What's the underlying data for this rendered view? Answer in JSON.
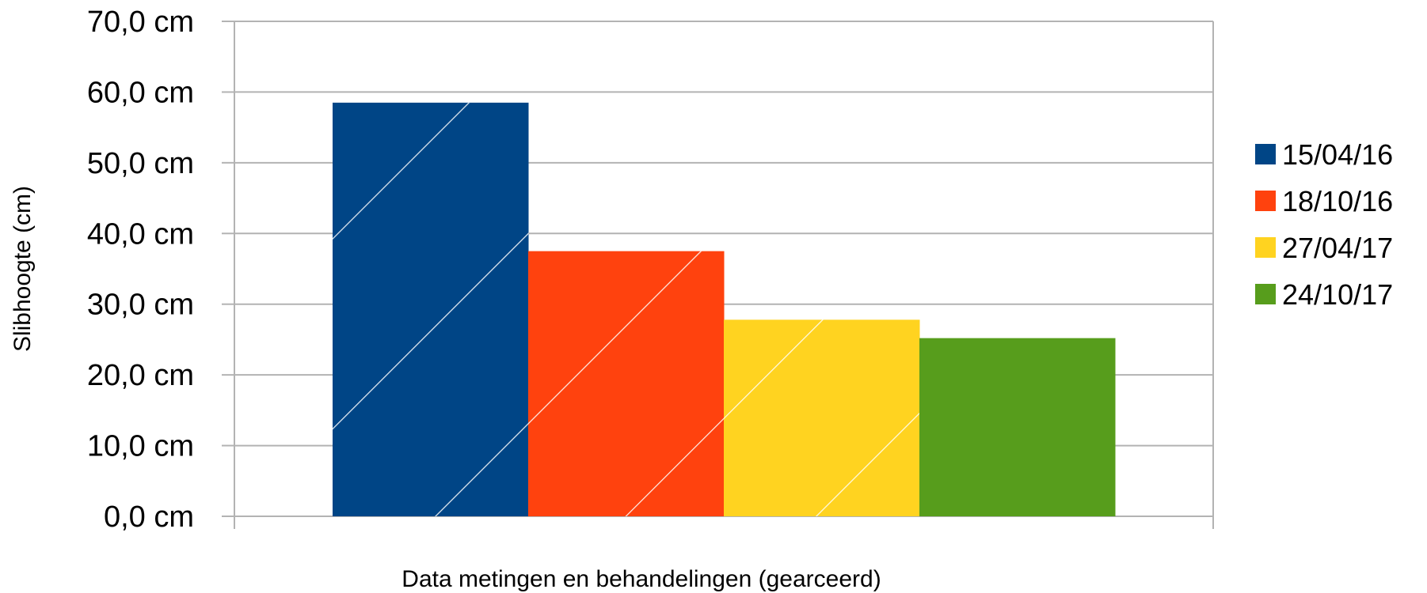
{
  "chart_data": {
    "type": "bar",
    "title": "",
    "xlabel": "Data metingen en behandelingen (gearceerd)",
    "ylabel": "Slibhoogte (cm)",
    "ylim": [
      0,
      70
    ],
    "y_ticks": [
      "0,0 cm",
      "10,0 cm",
      "20,0 cm",
      "30,0 cm",
      "40,0 cm",
      "50,0 cm",
      "60,0 cm",
      "70,0 cm"
    ],
    "grid": true,
    "legend_position": "right",
    "series": [
      {
        "name": "15/04/16",
        "values": [
          58.5
        ],
        "color": "#004586",
        "hatched": true
      },
      {
        "name": "18/10/16",
        "values": [
          37.5
        ],
        "color": "#ff420e",
        "hatched": true
      },
      {
        "name": "27/04/17",
        "values": [
          27.8
        ],
        "color": "#ffd320",
        "hatched": true
      },
      {
        "name": "24/10/17",
        "values": [
          25.2
        ],
        "color": "#579d1c",
        "hatched": false
      }
    ]
  }
}
